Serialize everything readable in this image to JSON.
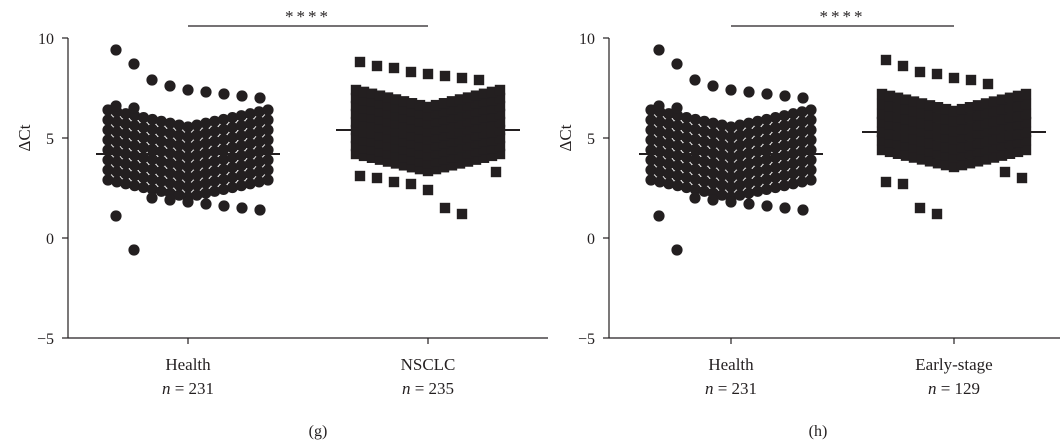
{
  "colors": {
    "ink": "#231f20",
    "background": "#ffffff"
  },
  "chart_data": [
    {
      "type": "scatter",
      "panel_label": "(g)",
      "ylabel": "ΔCt",
      "ylim": [
        -5,
        10
      ],
      "yticks": [
        -5,
        0,
        5,
        10
      ],
      "significance": "****",
      "groups": [
        {
          "name": "Health",
          "n_label": "n = 231",
          "n_italic": "n",
          "n_rest": " = 231",
          "marker": "circle",
          "mean": 4.2,
          "highlights": [
            9.4,
            8.7,
            7.9,
            7.6,
            7.4,
            7.3,
            7.2,
            7.1,
            7.0,
            6.6,
            6.5,
            2.0,
            1.9,
            1.8,
            1.7,
            1.6,
            1.5,
            1.4,
            1.1,
            -0.6
          ]
        },
        {
          "name": "NSCLC",
          "n_label": "n = 235",
          "n_italic": "n",
          "n_rest": " = 235",
          "marker": "square",
          "mean": 5.4,
          "highlights": [
            8.8,
            8.6,
            8.5,
            8.3,
            8.2,
            8.1,
            8.0,
            7.9,
            3.3,
            3.1,
            3.0,
            2.8,
            2.7,
            2.4,
            1.5,
            1.2
          ]
        }
      ]
    },
    {
      "type": "scatter",
      "panel_label": "(h)",
      "ylabel": "ΔCt",
      "ylim": [
        -5,
        10
      ],
      "yticks": [
        -5,
        0,
        5,
        10
      ],
      "significance": "****",
      "groups": [
        {
          "name": "Health",
          "n_label": "n = 231",
          "n_italic": "n",
          "n_rest": " = 231",
          "marker": "circle",
          "mean": 4.2,
          "highlights": [
            9.4,
            8.7,
            7.9,
            7.6,
            7.4,
            7.3,
            7.2,
            7.1,
            7.0,
            6.6,
            6.5,
            2.0,
            1.9,
            1.8,
            1.7,
            1.6,
            1.5,
            1.4,
            1.1,
            -0.6
          ]
        },
        {
          "name": "Early-stage",
          "n_label": "n = 129",
          "n_italic": "n",
          "n_rest": " = 129",
          "marker": "square",
          "mean": 5.3,
          "highlights": [
            8.9,
            8.6,
            8.3,
            8.2,
            8.0,
            7.9,
            7.7,
            3.3,
            3.0,
            2.8,
            2.7,
            1.5,
            1.2
          ]
        }
      ]
    }
  ]
}
